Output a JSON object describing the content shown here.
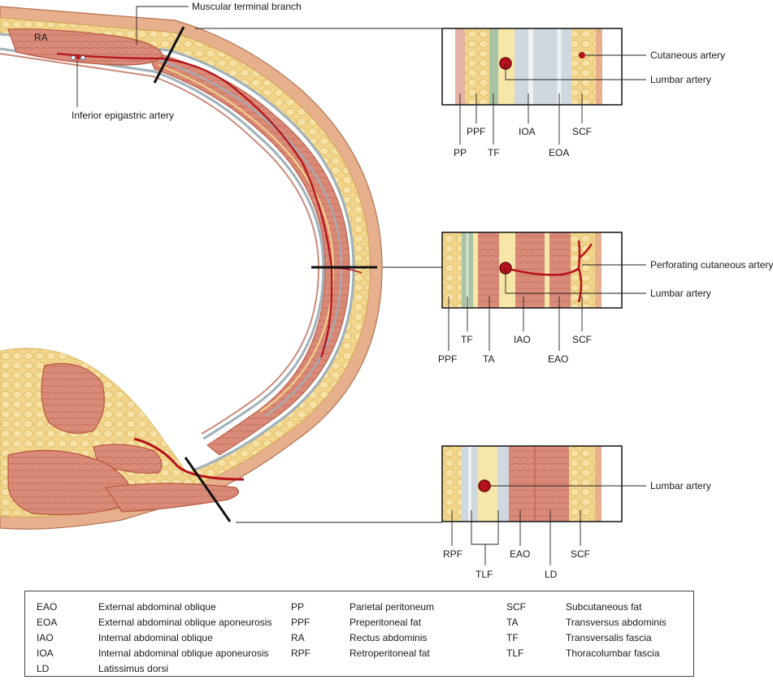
{
  "labels": {
    "ra": "RA",
    "muscular_terminal_branch": "Muscular terminal branch",
    "inferior_epigastric_artery": "Inferior epigastric artery"
  },
  "panel_top": {
    "callouts": [
      "Cutaneous artery",
      "Lumbar artery"
    ],
    "layers": [
      "PP",
      "PPF",
      "TF",
      "IOA",
      "EOA",
      "SCF"
    ]
  },
  "panel_middle": {
    "callouts": [
      "Perforating cutaneous artery",
      "Lumbar artery"
    ],
    "layers": [
      "PPF",
      "TF",
      "TA",
      "IAO",
      "EAO",
      "SCF"
    ]
  },
  "panel_bottom": {
    "callouts": [
      "Lumbar artery"
    ],
    "layers": [
      "RPF",
      "TLF",
      "EAO",
      "LD",
      "SCF"
    ]
  },
  "legend": [
    {
      "abbr": "EAO",
      "term": "External abdominal oblique"
    },
    {
      "abbr": "EOA",
      "term": "External abdominal oblique aponeurosis"
    },
    {
      "abbr": "IAO",
      "term": "Internal abdominal oblique"
    },
    {
      "abbr": "IOA",
      "term": "Internal abdominal oblique aponeurosis"
    },
    {
      "abbr": "LD",
      "term": "Latissimus dorsi"
    },
    {
      "abbr": "PP",
      "term": "Parietal peritoneum"
    },
    {
      "abbr": "PPF",
      "term": "Preperitoneal fat"
    },
    {
      "abbr": "RA",
      "term": "Rectus abdominis"
    },
    {
      "abbr": "RPF",
      "term": "Retroperitoneal fat"
    },
    {
      "abbr": "SCF",
      "term": "Subcutaneous fat"
    },
    {
      "abbr": "TA",
      "term": "Transversus abdominis"
    },
    {
      "abbr": "TF",
      "term": "Transversalis fascia"
    },
    {
      "abbr": "TLF",
      "term": "Thoracolumbar fascia"
    }
  ],
  "colors": {
    "muscle": "#d98a78",
    "muscle_dark": "#b8573f",
    "fat": "#f3d68c",
    "fat_edge": "#d8b65d",
    "fascia": "#b9c6cf",
    "tf_green": "#a9c3a3",
    "artery": "#b5121b",
    "skin": "#e7b08c"
  }
}
